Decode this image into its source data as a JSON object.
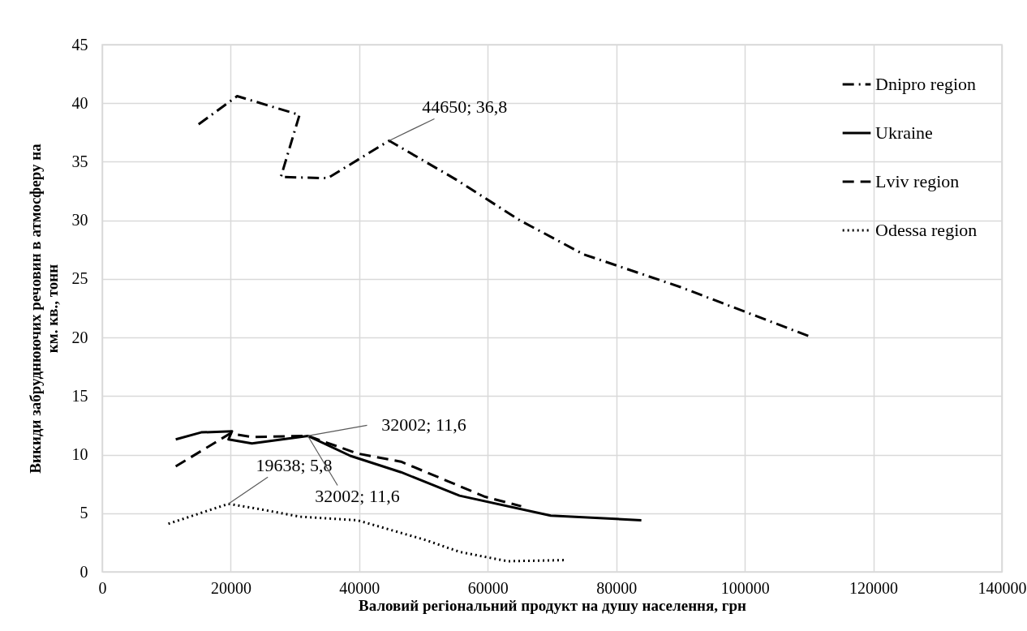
{
  "chart_data": {
    "type": "line",
    "xlabel": "Валовий регіональний продукт на душу населення, грн",
    "ylabel": "Викиди забруднюючих речовин в атмосферу на км. кв., тонн",
    "xlim": [
      0,
      140000
    ],
    "xticks": [
      0,
      20000,
      40000,
      60000,
      80000,
      100000,
      120000,
      140000
    ],
    "ylim": [
      0,
      45
    ],
    "yticks": [
      0,
      5,
      10,
      15,
      20,
      25,
      30,
      35,
      40,
      45
    ],
    "grid": true,
    "legend": "top right",
    "series": [
      {
        "name": "Dnipro region",
        "color": "#000000",
        "line_style": "dashdot",
        "x": [
          15000,
          21000,
          30700,
          27800,
          35100,
          44650,
          55000,
          65000,
          74900,
          90000,
          110500
        ],
        "values": [
          38.2,
          40.6,
          39.0,
          33.7,
          33.6,
          36.8,
          33.5,
          30.0,
          27.1,
          24.3,
          20.0
        ]
      },
      {
        "name": "Ukraine",
        "color": "#000000",
        "line_style": "solid",
        "x": [
          11440,
          15400,
          20200,
          19650,
          23300,
          32002,
          38600,
          46500,
          55600,
          69800,
          83900
        ],
        "values": [
          11.3,
          11.9,
          12.0,
          11.3,
          10.95,
          11.6,
          9.9,
          8.5,
          6.5,
          4.8,
          4.4
        ]
      },
      {
        "name": "Lviv region",
        "color": "#000000",
        "line_style": "dashed",
        "x": [
          11440,
          19900,
          23300,
          32002,
          39700,
          46500,
          59600,
          65200
        ],
        "values": [
          9.0,
          11.8,
          11.5,
          11.6,
          10.1,
          9.4,
          6.4,
          5.6
        ]
      },
      {
        "name": "Odessa region",
        "color": "#000000",
        "line_style": "dotted",
        "x": [
          10300,
          19638,
          25000,
          30800,
          39700,
          50400,
          55600,
          63100,
          72200
        ],
        "values": [
          4.1,
          5.8,
          5.3,
          4.7,
          4.4,
          2.7,
          1.7,
          0.9,
          1.0
        ]
      }
    ],
    "annotations": [
      {
        "text": "44650; 36,8",
        "x": 44650,
        "y": 36.8
      },
      {
        "text": "32002; 11,6",
        "x": 32002,
        "y": 11.6
      },
      {
        "text": "19638; 5,8",
        "x": 19638,
        "y": 5.8
      },
      {
        "text": "32002; 11,6",
        "x": 32002,
        "y": 11.6
      }
    ]
  }
}
